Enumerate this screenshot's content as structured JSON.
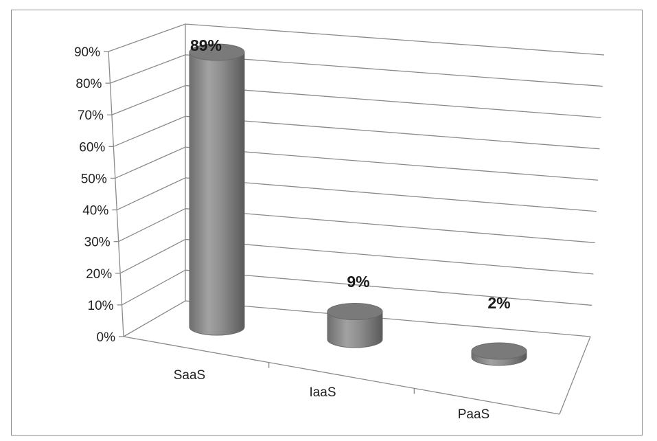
{
  "chart_data": {
    "type": "bar",
    "style": "3d-cylinder",
    "categories": [
      "SaaS",
      "IaaS",
      "PaaS"
    ],
    "values": [
      89,
      9,
      2
    ],
    "value_labels": [
      "89%",
      "9%",
      "2%"
    ],
    "ylim": [
      0,
      90
    ],
    "yticks": [
      "0%",
      "10%",
      "20%",
      "30%",
      "40%",
      "50%",
      "60%",
      "70%",
      "80%",
      "90%"
    ],
    "grid": true,
    "legend": "none",
    "bar_color": "#8a8a8a"
  }
}
